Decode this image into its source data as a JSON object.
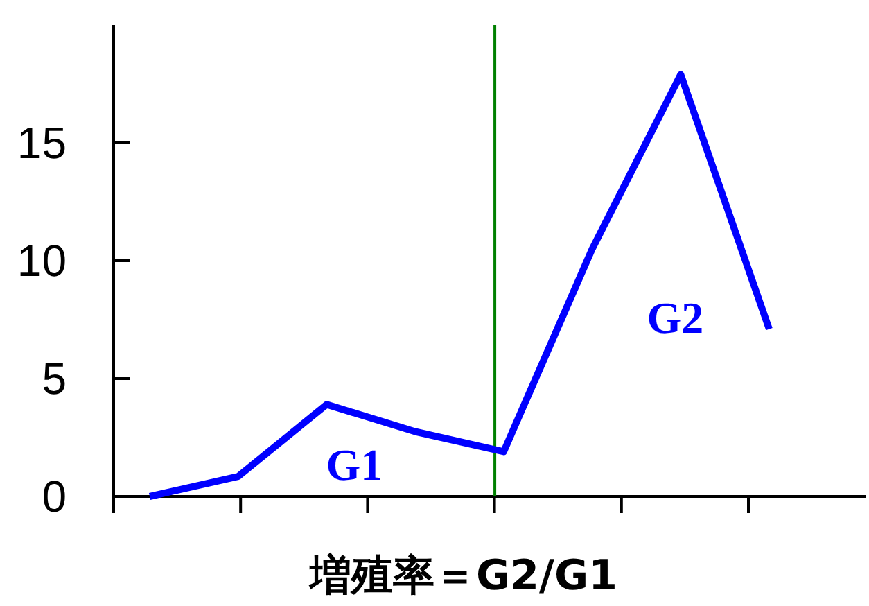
{
  "chart_data": {
    "type": "line",
    "xlabel": "増殖率＝G2/G1",
    "categories": [
      null,
      null,
      null,
      null,
      null,
      null,
      null,
      null
    ],
    "series": [
      {
        "color": "#0000ff",
        "values": [
          0,
          0.85,
          3.9,
          2.75,
          1.9,
          10.5,
          17.9,
          7.1
        ]
      }
    ],
    "ylim": [
      0,
      20
    ],
    "yticks": [
      0,
      5,
      10,
      15
    ],
    "tick_labels": "y",
    "marker": "none",
    "line_style": "solid",
    "annotations": [
      "G1",
      "G2"
    ]
  }
}
